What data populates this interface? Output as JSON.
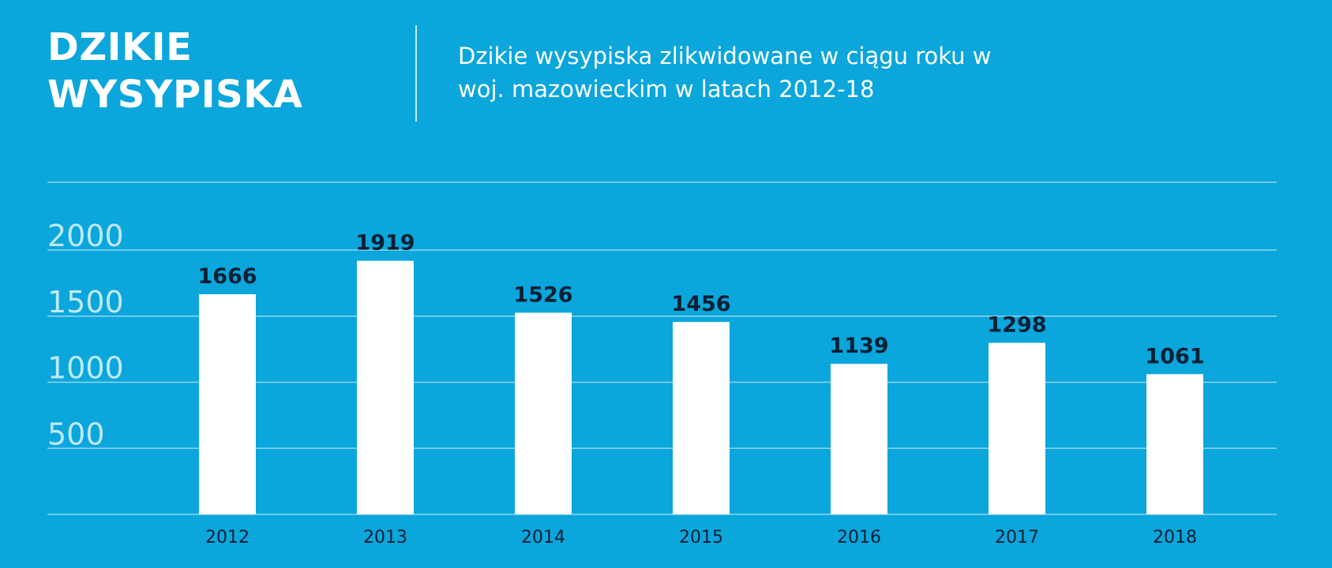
{
  "header": {
    "title_line1": "DZIKIE",
    "title_line2": "WYSYPISKA",
    "subtitle_line1": "Dzikie wysypiska zlikwidowane w ciągu roku w",
    "subtitle_line2": "woj. mazowieckim w latach 2012-18"
  },
  "colors": {
    "background": "#0aa6dc",
    "bar": "#ffffff",
    "value_label": "#0b1f33",
    "category_label": "#0b1f33",
    "axis_label": "#bfe9f7",
    "gridline": "#8fd6ef"
  },
  "chart_data": {
    "type": "bar",
    "categories": [
      "2012",
      "2013",
      "2014",
      "2015",
      "2016",
      "2017",
      "2018"
    ],
    "values": [
      1666,
      1919,
      1526,
      1456,
      1139,
      1298,
      1061
    ],
    "value_labels": [
      "1666",
      "1919",
      "1526",
      "1456",
      "1139",
      "1298",
      "1061"
    ],
    "y_tick_labels": [
      "2000",
      "1500",
      "1000",
      "500"
    ],
    "y_ticks": [
      2000,
      1500,
      1000,
      500
    ],
    "ylim": [
      0,
      2000
    ],
    "grid": true,
    "legend": "none"
  }
}
